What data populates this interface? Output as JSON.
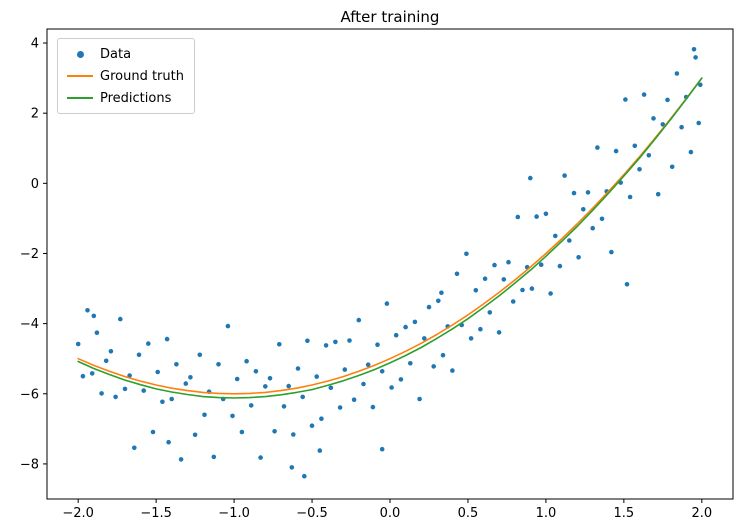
{
  "chart_data": {
    "type": "scatter",
    "title": "After training",
    "xlabel": "",
    "ylabel": "",
    "xlim": [
      -2.2,
      2.2
    ],
    "ylim": [
      -9.0,
      4.4
    ],
    "grid": false,
    "legend_position": "upper left",
    "x_ticks": [
      -2.0,
      -1.5,
      -1.0,
      -0.5,
      0.0,
      0.5,
      1.0,
      1.5,
      2.0
    ],
    "x_tick_labels": [
      "−2.0",
      "−1.5",
      "−1.0",
      "−0.5",
      "0.0",
      "0.5",
      "1.0",
      "1.5",
      "2.0"
    ],
    "y_ticks": [
      -8,
      -6,
      -4,
      -2,
      0,
      2,
      4
    ],
    "y_tick_labels": [
      "−8",
      "−6",
      "−4",
      "−2",
      "0",
      "2",
      "4"
    ],
    "series": [
      {
        "name": "Data",
        "type": "scatter",
        "color": "#1f77b4",
        "x": [
          -2.0,
          -1.97,
          -1.94,
          -1.91,
          -1.88,
          -1.85,
          -1.82,
          -1.79,
          -1.76,
          -1.73,
          -1.7,
          -1.67,
          -1.64,
          -1.61,
          -1.58,
          -1.55,
          -1.52,
          -1.49,
          -1.46,
          -1.43,
          -1.4,
          -1.37,
          -1.34,
          -1.31,
          -1.28,
          -1.25,
          -1.22,
          -1.19,
          -1.16,
          -1.13,
          -1.1,
          -1.07,
          -1.04,
          -1.01,
          -0.98,
          -0.95,
          -0.92,
          -0.89,
          -0.86,
          -0.83,
          -0.8,
          -0.77,
          -0.74,
          -0.71,
          -0.68,
          -0.65,
          -0.62,
          -0.59,
          -0.56,
          -0.53,
          -0.5,
          -0.47,
          -0.44,
          -0.41,
          -0.38,
          -0.35,
          -0.32,
          -0.29,
          -0.26,
          -0.23,
          -0.2,
          -0.17,
          -0.14,
          -0.11,
          -0.08,
          -0.05,
          -0.02,
          0.01,
          0.04,
          0.07,
          0.1,
          0.13,
          0.16,
          0.19,
          0.22,
          0.25,
          0.28,
          0.31,
          0.34,
          0.37,
          0.4,
          0.43,
          0.46,
          0.49,
          0.52,
          0.55,
          0.58,
          0.61,
          0.64,
          0.67,
          0.7,
          0.73,
          0.76,
          0.79,
          0.82,
          0.85,
          0.88,
          0.91,
          0.94,
          0.97,
          1.0,
          1.03,
          1.06,
          1.09,
          1.12,
          1.15,
          1.18,
          1.21,
          1.24,
          1.27,
          1.3,
          1.33,
          1.36,
          1.39,
          1.42,
          1.45,
          1.48,
          1.51,
          1.54,
          1.57,
          1.6,
          1.63,
          1.66,
          1.69,
          1.72,
          1.75,
          1.78,
          1.81,
          1.84,
          1.87,
          1.9,
          1.93,
          1.96,
          1.99,
          1.95,
          0.9,
          -0.55,
          -0.63,
          -0.45,
          -0.05,
          -1.9,
          1.52,
          1.98,
          0.33,
          -1.42
        ],
        "y": [
          -4.58,
          -5.5,
          -3.62,
          -5.42,
          -4.26,
          -5.99,
          -5.06,
          -4.79,
          -6.09,
          -3.87,
          -5.86,
          -5.48,
          -7.54,
          -4.89,
          -5.91,
          -4.57,
          -7.09,
          -5.38,
          -6.23,
          -4.44,
          -6.15,
          -5.16,
          -7.87,
          -5.71,
          -5.53,
          -7.17,
          -4.89,
          -6.6,
          -5.94,
          -7.8,
          -5.16,
          -6.15,
          -4.07,
          -6.63,
          -5.58,
          -7.09,
          -5.07,
          -6.33,
          -5.36,
          -7.82,
          -5.79,
          -5.56,
          -7.07,
          -4.59,
          -6.36,
          -5.78,
          -7.16,
          -5.28,
          -6.09,
          -4.49,
          -6.91,
          -5.51,
          -6.71,
          -4.62,
          -5.83,
          -4.52,
          -6.39,
          -5.31,
          -4.48,
          -6.17,
          -3.9,
          -5.72,
          -5.17,
          -6.38,
          -4.6,
          -5.36,
          -3.43,
          -5.82,
          -4.33,
          -5.59,
          -4.1,
          -5.13,
          -3.95,
          -6.15,
          -4.42,
          -3.53,
          -5.22,
          -3.35,
          -4.9,
          -4.08,
          -5.34,
          -2.58,
          -4.04,
          -2.01,
          -4.42,
          -3.05,
          -4.16,
          -2.72,
          -3.68,
          -2.33,
          -4.25,
          -2.74,
          -2.25,
          -3.37,
          -0.96,
          -3.04,
          -2.39,
          -3.0,
          -0.95,
          -2.32,
          -0.87,
          -3.14,
          -1.5,
          -2.36,
          0.22,
          -1.63,
          -0.28,
          -2.11,
          -0.74,
          -0.26,
          -1.28,
          1.02,
          -1.01,
          -0.23,
          -1.96,
          0.92,
          0.02,
          2.39,
          -0.39,
          1.07,
          0.4,
          2.53,
          0.8,
          1.85,
          -0.31,
          1.68,
          2.38,
          0.47,
          3.13,
          1.6,
          2.46,
          0.89,
          3.59,
          2.81,
          3.82,
          0.15,
          -8.35,
          -8.1,
          -7.62,
          -7.58,
          -3.78,
          -2.88,
          1.72,
          -3.12,
          -7.38
        ]
      },
      {
        "name": "Ground truth",
        "type": "line",
        "color": "#ff7f0e",
        "x": [
          -2.0,
          -1.9,
          -1.8,
          -1.7,
          -1.6,
          -1.5,
          -1.4,
          -1.3,
          -1.2,
          -1.1,
          -1.0,
          -0.9,
          -0.8,
          -0.7,
          -0.6,
          -0.5,
          -0.4,
          -0.3,
          -0.2,
          -0.1,
          0.0,
          0.1,
          0.2,
          0.3,
          0.4,
          0.5,
          0.6,
          0.7,
          0.8,
          0.9,
          1.0,
          1.1,
          1.2,
          1.3,
          1.4,
          1.5,
          1.6,
          1.7,
          1.8,
          1.9,
          2.0
        ],
        "y": [
          -5.0,
          -5.19,
          -5.36,
          -5.51,
          -5.64,
          -5.75,
          -5.84,
          -5.91,
          -5.96,
          -5.99,
          -6.0,
          -5.99,
          -5.96,
          -5.91,
          -5.84,
          -5.75,
          -5.64,
          -5.51,
          -5.36,
          -5.19,
          -5.0,
          -4.79,
          -4.56,
          -4.31,
          -4.04,
          -3.75,
          -3.44,
          -3.11,
          -2.76,
          -2.39,
          -2.0,
          -1.59,
          -1.16,
          -0.71,
          -0.24,
          0.25,
          0.76,
          1.29,
          1.84,
          2.41,
          3.0
        ]
      },
      {
        "name": "Predictions",
        "type": "line",
        "color": "#2ca02c",
        "x": [
          -2.0,
          -1.9,
          -1.8,
          -1.7,
          -1.6,
          -1.5,
          -1.4,
          -1.3,
          -1.2,
          -1.1,
          -1.0,
          -0.9,
          -0.8,
          -0.7,
          -0.6,
          -0.5,
          -0.4,
          -0.3,
          -0.2,
          -0.1,
          0.0,
          0.1,
          0.2,
          0.3,
          0.4,
          0.5,
          0.6,
          0.7,
          0.8,
          0.9,
          1.0,
          1.1,
          1.2,
          1.3,
          1.4,
          1.5,
          1.6,
          1.7,
          1.8,
          1.9,
          2.0
        ],
        "y": [
          -5.08,
          -5.28,
          -5.45,
          -5.61,
          -5.74,
          -5.86,
          -5.95,
          -6.02,
          -6.08,
          -6.11,
          -6.12,
          -6.11,
          -6.08,
          -6.03,
          -5.96,
          -5.88,
          -5.76,
          -5.63,
          -5.48,
          -5.31,
          -5.12,
          -4.91,
          -4.68,
          -4.42,
          -4.15,
          -3.86,
          -3.54,
          -3.21,
          -2.85,
          -2.48,
          -2.08,
          -1.66,
          -1.23,
          -0.77,
          -0.29,
          0.21,
          0.72,
          1.26,
          1.82,
          2.4,
          3.0
        ]
      }
    ]
  },
  "colors": {
    "background": "#ffffff",
    "spine": "#000000",
    "tick_text": "#000000",
    "scatter": "#1f77b4",
    "ground_truth": "#ff7f0e",
    "predictions": "#2ca02c"
  }
}
